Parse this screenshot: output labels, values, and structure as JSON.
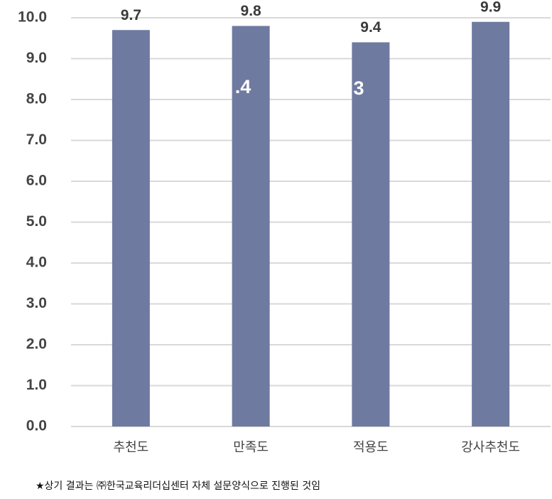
{
  "chart_data": {
    "type": "bar",
    "categories": [
      "추천도",
      "만족도",
      "적용도",
      "강사추천도"
    ],
    "values": [
      9.7,
      9.8,
      9.4,
      9.9
    ],
    "color": "#6f7aa0",
    "ylim": [
      0,
      10
    ],
    "yticks": [
      {
        "value": 0,
        "label": "0.0"
      },
      {
        "value": 1,
        "label": "1.0"
      },
      {
        "value": 2,
        "label": "2.0"
      },
      {
        "value": 3,
        "label": "3.0"
      },
      {
        "value": 4,
        "label": "4.0"
      },
      {
        "value": 5,
        "label": "5.0"
      },
      {
        "value": 6,
        "label": "6.0"
      },
      {
        "value": 7,
        "label": "7.0"
      },
      {
        "value": 8,
        "label": "8.0"
      },
      {
        "value": 9,
        "label": "9.0"
      },
      {
        "value": 10,
        "label": "10.0"
      }
    ],
    "grid": true,
    "annotations": [
      ".4",
      "3"
    ],
    "footnote": "★상기 결과는 ㈜한국교육리더십센터 자체 설문양식으로 진행된 것임"
  }
}
